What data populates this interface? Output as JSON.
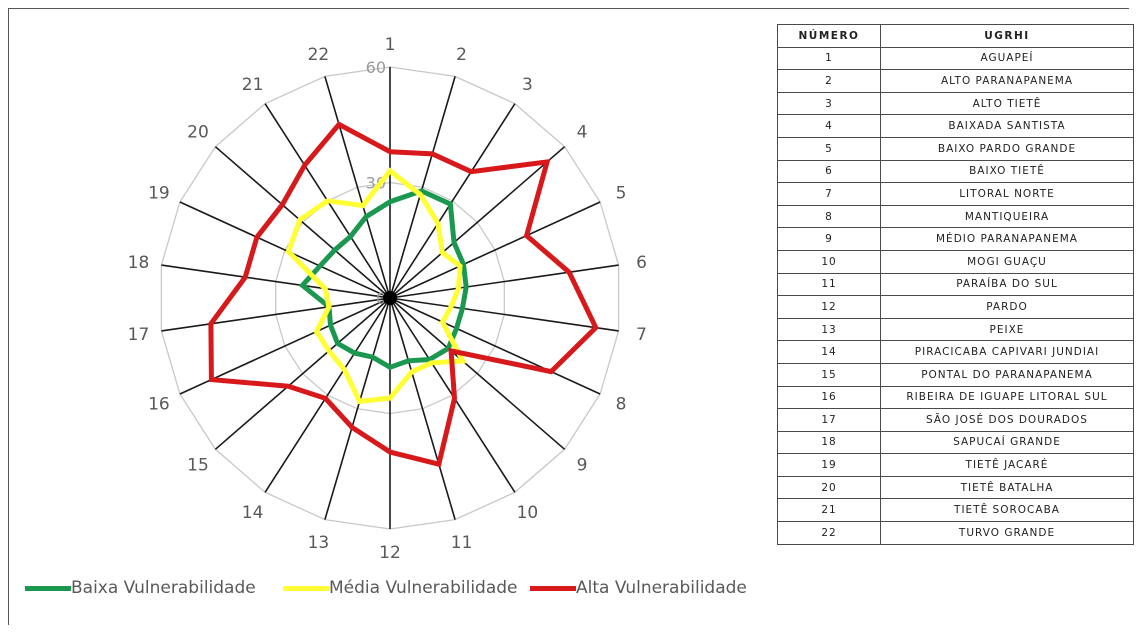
{
  "chart_data": {
    "type": "radar",
    "categories": [
      "1",
      "2",
      "3",
      "4",
      "5",
      "6",
      "7",
      "8",
      "9",
      "10",
      "11",
      "12",
      "13",
      "14",
      "15",
      "16",
      "17",
      "18",
      "19",
      "20",
      "21",
      "22"
    ],
    "rlim": [
      0,
      60
    ],
    "rticks": [
      0,
      30,
      60
    ],
    "rtick_labels": [
      "0",
      "30",
      "60"
    ],
    "grid": true,
    "legend_position": "bottom",
    "series": [
      {
        "name": "Baixa Vulnerabilidade",
        "color": "#1a9850",
        "values": [
          25,
          29,
          29,
          22,
          21,
          20,
          19,
          19,
          20,
          19,
          17,
          18,
          16,
          17,
          18,
          17,
          16,
          23,
          20,
          19,
          19,
          22
        ]
      },
      {
        "name": "Média Vulnerabilidade",
        "color": "#ffff33",
        "values": [
          33,
          28,
          23,
          18,
          20,
          18,
          16,
          15,
          25,
          20,
          20,
          26,
          28,
          22,
          21,
          21,
          16,
          17,
          29,
          31,
          30,
          25
        ]
      },
      {
        "name": "Alta Vulnerabilidade",
        "color": "#d7191c",
        "values": [
          38,
          39,
          39,
          54,
          39,
          47,
          54,
          46,
          21,
          31,
          45,
          40,
          35,
          31,
          35,
          51,
          47,
          38,
          38,
          37,
          41,
          47
        ]
      }
    ]
  },
  "table": {
    "headers": [
      "NÚMERO",
      "UGRHI"
    ],
    "rows": [
      [
        "1",
        "AGUAPEÍ"
      ],
      [
        "2",
        "ALTO PARANAPANEMA"
      ],
      [
        "3",
        "ALTO TIETÊ"
      ],
      [
        "4",
        "BAIXADA SANTISTA"
      ],
      [
        "5",
        "BAIXO PARDO GRANDE"
      ],
      [
        "6",
        "BAIXO TIETÊ"
      ],
      [
        "7",
        "LITORAL NORTE"
      ],
      [
        "8",
        "MANTIQUEIRA"
      ],
      [
        "9",
        "MÉDIO PARANAPANEMA"
      ],
      [
        "10",
        "MOGI GUAÇU"
      ],
      [
        "11",
        "PARAÍBA DO SUL"
      ],
      [
        "12",
        "PARDO"
      ],
      [
        "13",
        "PEIXE"
      ],
      [
        "14",
        "PIRACICABA CAPIVARI JUNDIAI"
      ],
      [
        "15",
        "PONTAL DO PARANAPANEMA"
      ],
      [
        "16",
        "RIBEIRA DE IGUAPE LITORAL SUL"
      ],
      [
        "17",
        "SÃO JOSÉ DOS DOURADOS"
      ],
      [
        "18",
        "SAPUCAÍ GRANDE"
      ],
      [
        "19",
        "TIETÊ  JACARÉ"
      ],
      [
        "20",
        "TIETÊ BATALHA"
      ],
      [
        "21",
        "TIETÊ SOROCABA"
      ],
      [
        "22",
        "TURVO GRANDE"
      ]
    ]
  }
}
